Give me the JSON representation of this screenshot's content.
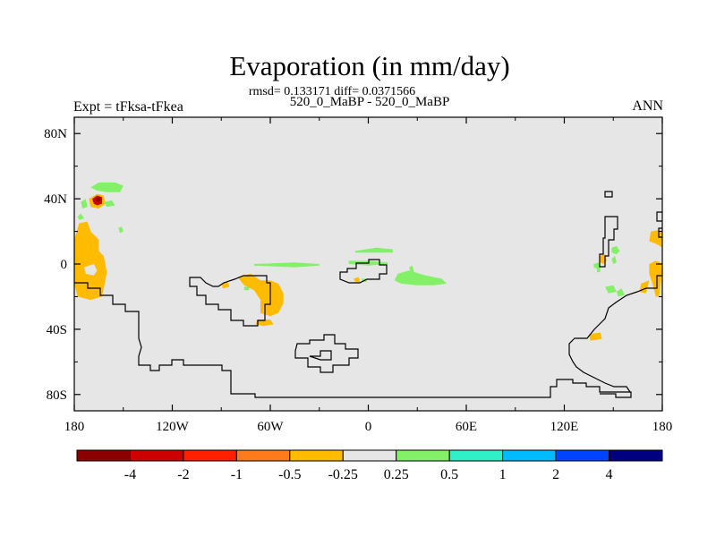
{
  "title": "Evaporation (in mm/day)",
  "stats_line": "rmsd= 0.133171 diff= 0.0371566",
  "case_line": "520_0_MaBP - 520_0_MaBP",
  "left_label": "Expt = tFksa-tFkea",
  "right_label": "ANN",
  "chart_data": {
    "type": "heatmap",
    "projection": "cylindrical-equidistant",
    "variable": "Evaporation difference",
    "units": "mm/day",
    "xlim": [
      -180,
      180
    ],
    "ylim": [
      -90,
      90
    ],
    "x_ticks": [
      {
        "value": -180,
        "label": "180"
      },
      {
        "value": -120,
        "label": "120W"
      },
      {
        "value": -60,
        "label": "60W"
      },
      {
        "value": 0,
        "label": "0"
      },
      {
        "value": 60,
        "label": "60E"
      },
      {
        "value": 120,
        "label": "120E"
      },
      {
        "value": 180,
        "label": "180"
      }
    ],
    "y_ticks": [
      {
        "value": 80,
        "label": "80N"
      },
      {
        "value": 40,
        "label": "40N"
      },
      {
        "value": 0,
        "label": "0"
      },
      {
        "value": -40,
        "label": "40S"
      },
      {
        "value": -80,
        "label": "80S"
      }
    ],
    "background_color": "#e6e6e6",
    "colorbar": {
      "colors": [
        "#8b0000",
        "#cc0000",
        "#ff2000",
        "#ff7a1a",
        "#ffbb00",
        "#e6e6e6",
        "#84f068",
        "#30f0c8",
        "#00bbff",
        "#0044ff",
        "#000080"
      ],
      "labels": [
        "-4",
        "-2",
        "-1",
        "-0.5",
        "-0.25",
        "0.25",
        "0.5",
        "1",
        "2",
        "4"
      ]
    },
    "regions": [
      {
        "cls": "orange",
        "poly": [
          [
            -180,
            15
          ],
          [
            -177,
            25
          ],
          [
            -172,
            26
          ],
          [
            -170,
            20
          ],
          [
            -165,
            15
          ],
          [
            -165,
            8
          ],
          [
            -162,
            5
          ],
          [
            -160,
            -5
          ],
          [
            -163,
            -20
          ],
          [
            -170,
            -22
          ],
          [
            -178,
            -20
          ],
          [
            -180,
            -12
          ]
        ]
      },
      {
        "cls": "grey",
        "poly": [
          [
            -174,
            -2
          ],
          [
            -168,
            0
          ],
          [
            -166,
            -4
          ],
          [
            -168,
            -7
          ],
          [
            -173,
            -6
          ]
        ]
      },
      {
        "cls": "green",
        "poly": [
          [
            -176,
            38
          ],
          [
            -173,
            40
          ],
          [
            -172,
            35
          ],
          [
            -175,
            34
          ]
        ]
      },
      {
        "cls": "orange",
        "poly": [
          [
            -171,
            40
          ],
          [
            -166,
            43
          ],
          [
            -162,
            42
          ],
          [
            -161,
            37
          ],
          [
            -165,
            34
          ],
          [
            -170,
            35
          ]
        ]
      },
      {
        "cls": "red",
        "poly": [
          [
            -169,
            40
          ],
          [
            -166,
            42
          ],
          [
            -163,
            41
          ],
          [
            -163,
            37
          ],
          [
            -166,
            36
          ],
          [
            -168,
            37
          ]
        ]
      },
      {
        "cls": "darkred",
        "poly": [
          [
            -167,
            40
          ],
          [
            -165,
            41
          ],
          [
            -164,
            39
          ],
          [
            -166,
            38
          ]
        ]
      },
      {
        "cls": "green",
        "poly": [
          [
            -170,
            47
          ],
          [
            -165,
            50
          ],
          [
            -155,
            50
          ],
          [
            -150,
            48
          ],
          [
            -152,
            44
          ],
          [
            -160,
            44
          ],
          [
            -166,
            45
          ]
        ]
      },
      {
        "cls": "green",
        "poly": [
          [
            -162,
            38
          ],
          [
            -157,
            39
          ],
          [
            -155,
            36
          ],
          [
            -160,
            35
          ]
        ]
      },
      {
        "cls": "green",
        "poly": [
          [
            -178,
            29
          ],
          [
            -176,
            31
          ],
          [
            -174,
            28
          ],
          [
            -177,
            27
          ]
        ]
      },
      {
        "cls": "green",
        "poly": [
          [
            -153,
            22
          ],
          [
            -151,
            23
          ],
          [
            -150,
            20
          ],
          [
            -152,
            19
          ]
        ]
      },
      {
        "cls": "orange",
        "poly": [
          [
            -80,
            -8
          ],
          [
            -72,
            -6
          ],
          [
            -66,
            -10
          ],
          [
            -60,
            -10
          ],
          [
            -55,
            -12
          ],
          [
            -52,
            -18
          ],
          [
            -52,
            -24
          ],
          [
            -55,
            -30
          ],
          [
            -60,
            -32
          ],
          [
            -66,
            -30
          ],
          [
            -66,
            -22
          ],
          [
            -70,
            -16
          ],
          [
            -76,
            -13
          ]
        ]
      },
      {
        "cls": "orange",
        "poly": [
          [
            -90,
            -12
          ],
          [
            -86,
            -11
          ],
          [
            -85,
            -14
          ],
          [
            -89,
            -15
          ]
        ]
      },
      {
        "cls": "green",
        "poly": [
          [
            -76,
            -14
          ],
          [
            -73,
            -14
          ],
          [
            -73,
            -16
          ],
          [
            -76,
            -16
          ]
        ]
      },
      {
        "cls": "orange",
        "poly": [
          [
            -68,
            -34
          ],
          [
            -60,
            -34
          ],
          [
            -58,
            -37
          ],
          [
            -64,
            -38
          ],
          [
            -69,
            -37
          ]
        ]
      },
      {
        "cls": "green",
        "poly": [
          [
            -70,
            0
          ],
          [
            -45,
            1
          ],
          [
            -30,
            0
          ],
          [
            -30,
            -1
          ],
          [
            -45,
            -2
          ],
          [
            -70,
            -1
          ]
        ]
      },
      {
        "cls": "green",
        "poly": [
          [
            -8,
            8
          ],
          [
            5,
            10
          ],
          [
            15,
            9
          ],
          [
            15,
            7
          ],
          [
            5,
            7
          ],
          [
            -8,
            7
          ]
        ]
      },
      {
        "cls": "green",
        "poly": [
          [
            -12,
            2
          ],
          [
            0,
            2
          ],
          [
            12,
            1
          ],
          [
            12,
            0
          ],
          [
            0,
            -1
          ],
          [
            -12,
            0
          ]
        ]
      },
      {
        "cls": "green",
        "poly": [
          [
            18,
            -6
          ],
          [
            25,
            -4
          ],
          [
            35,
            -7
          ],
          [
            45,
            -9
          ],
          [
            48,
            -12
          ],
          [
            40,
            -13
          ],
          [
            30,
            -13
          ],
          [
            20,
            -12
          ],
          [
            16,
            -10
          ]
        ]
      },
      {
        "cls": "green",
        "poly": [
          [
            25,
            -2
          ],
          [
            27,
            -1
          ],
          [
            28,
            -5
          ],
          [
            26,
            -5
          ]
        ]
      },
      {
        "cls": "orange",
        "poly": [
          [
            -9,
            -9
          ],
          [
            -6,
            -8
          ],
          [
            -5,
            -11
          ],
          [
            -8,
            -11
          ]
        ]
      },
      {
        "cls": "green",
        "poly": [
          [
            -4,
            -9
          ],
          [
            -1,
            -9
          ],
          [
            -1,
            -11
          ],
          [
            -4,
            -11
          ]
        ]
      },
      {
        "cls": "orange",
        "poly": [
          [
            135,
            -43
          ],
          [
            142,
            -42
          ],
          [
            143,
            -46
          ],
          [
            136,
            -47
          ]
        ]
      },
      {
        "cls": "green",
        "poly": [
          [
            145,
            -14
          ],
          [
            150,
            -13
          ],
          [
            152,
            -17
          ],
          [
            147,
            -18
          ]
        ]
      },
      {
        "cls": "green",
        "poly": [
          [
            152,
            -17
          ],
          [
            155,
            -15
          ],
          [
            157,
            -19
          ],
          [
            153,
            -20
          ]
        ]
      },
      {
        "cls": "orange",
        "poly": [
          [
            167,
            -12
          ],
          [
            172,
            -10
          ],
          [
            170,
            -18
          ],
          [
            166,
            -17
          ]
        ]
      },
      {
        "cls": "orange",
        "poly": [
          [
            173,
            20
          ],
          [
            179,
            21
          ],
          [
            180,
            18
          ],
          [
            180,
            10
          ],
          [
            177,
            12
          ],
          [
            172,
            14
          ]
        ]
      },
      {
        "cls": "orange",
        "poly": [
          [
            172,
            0
          ],
          [
            176,
            2
          ],
          [
            179,
            1
          ],
          [
            180,
            -4
          ],
          [
            178,
            -20
          ],
          [
            176,
            -20
          ],
          [
            174,
            -12
          ],
          [
            172,
            -6
          ]
        ]
      },
      {
        "cls": "orange",
        "poly": [
          [
            142,
            5
          ],
          [
            145,
            6
          ],
          [
            146,
            2
          ],
          [
            144,
            0
          ],
          [
            142,
            1
          ]
        ]
      },
      {
        "cls": "green",
        "poly": [
          [
            149,
            10
          ],
          [
            152,
            11
          ],
          [
            154,
            8
          ],
          [
            152,
            6
          ],
          [
            149,
            7
          ]
        ]
      },
      {
        "cls": "green",
        "poly": [
          [
            149,
            3
          ],
          [
            151,
            5
          ],
          [
            152,
            1
          ],
          [
            150,
            0
          ]
        ]
      },
      {
        "cls": "green",
        "poly": [
          [
            138,
            0
          ],
          [
            141,
            1
          ],
          [
            142,
            -2
          ],
          [
            140,
            -3
          ],
          [
            138,
            -2
          ]
        ]
      },
      {
        "cls": "green",
        "poly": [
          [
            140,
            -3
          ],
          [
            142,
            -2
          ],
          [
            142,
            -5
          ],
          [
            140,
            -5
          ]
        ]
      }
    ]
  }
}
